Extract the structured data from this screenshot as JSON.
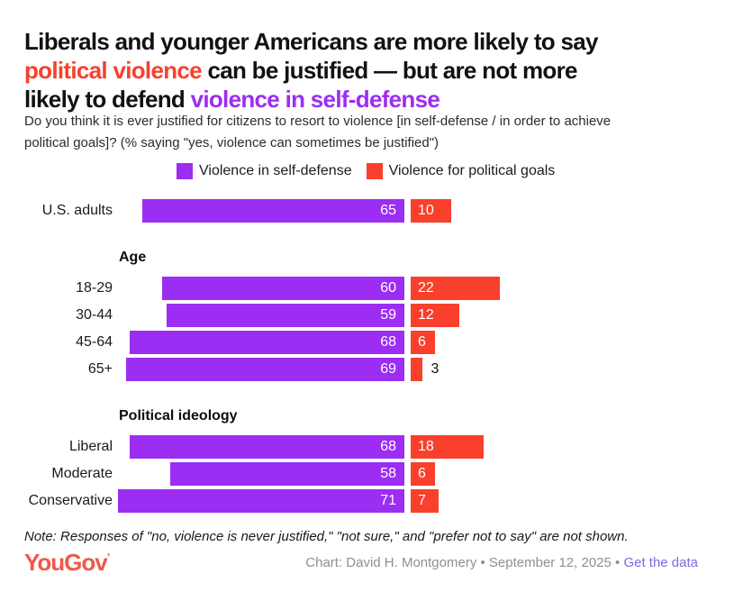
{
  "colors": {
    "self_defense_purple": "#9c2df2",
    "political_red": "#f8402c",
    "logo_coral": "#ef594a",
    "link_purple": "#7c6ce0",
    "credit_gray": "#8f8f8f"
  },
  "title": {
    "line1": "Liberals and younger Americans are more likely to say",
    "line2_accent": "political violence",
    "line2_rest": " can be justified — but are not more",
    "line3_pre": "likely to defend ",
    "line3_accent": "violence in self-defense"
  },
  "subtitle": {
    "line1": "Do you think it is ever justified for citizens to resort to violence [in self-defense / in order to achieve",
    "line2": "political goals]? (% saying \"yes, violence can sometimes be justified\")"
  },
  "chart_data": {
    "type": "bar",
    "orientation": "horizontal-diverging",
    "value_unit": "percent",
    "value_range": [
      0,
      100
    ],
    "legend_position": "top",
    "series": [
      {
        "name": "Violence in self-defense",
        "color": "#9c2df2",
        "direction": "left"
      },
      {
        "name": "Violence for political goals",
        "color": "#f8402c",
        "direction": "right"
      }
    ],
    "groups": [
      {
        "header": "",
        "rows": [
          {
            "label": "U.S. adults",
            "values": [
              65,
              10
            ]
          }
        ]
      },
      {
        "header": "Age",
        "rows": [
          {
            "label": "18-29",
            "values": [
              60,
              22
            ]
          },
          {
            "label": "30-44",
            "values": [
              59,
              12
            ]
          },
          {
            "label": "45-64",
            "values": [
              68,
              6
            ]
          },
          {
            "label": "65+",
            "values": [
              69,
              3
            ]
          }
        ]
      },
      {
        "header": "Political ideology",
        "rows": [
          {
            "label": "Liberal",
            "values": [
              68,
              18
            ]
          },
          {
            "label": "Moderate",
            "values": [
              58,
              6
            ]
          },
          {
            "label": "Conservative",
            "values": [
              71,
              7
            ]
          }
        ]
      }
    ]
  },
  "note": "Note: Responses of \"no, violence is never justified,\" \"not sure,\" and \"prefer not to say\" are not shown.",
  "footer": {
    "logo": "YouGov",
    "logo_mark": "’",
    "credit": "Chart: David H. Montgomery • September 12, 2025 • ",
    "link": "Get the data"
  }
}
